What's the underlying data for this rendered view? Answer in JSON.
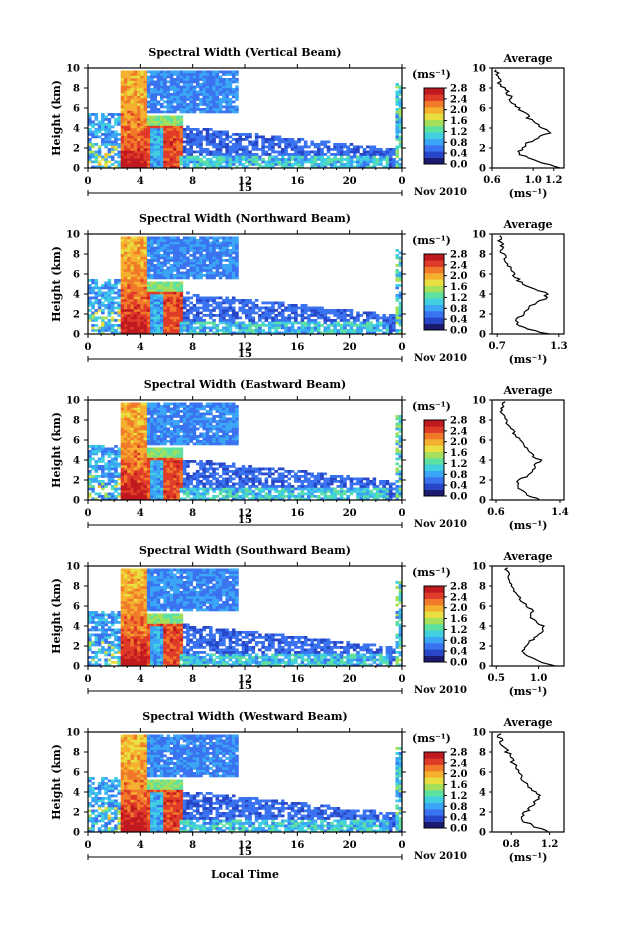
{
  "figure": {
    "x_axis_label": "Local Time",
    "y_axis_label": "Height (km)",
    "date_label": "Nov 2010",
    "colorbar_unit": "(ms⁻¹)",
    "profile_title": "Average",
    "profile_unit": "(ms⁻¹)"
  },
  "colormap": [
    "#1a1a6e",
    "#2747c8",
    "#3a73f0",
    "#3aa6f5",
    "#40d0e0",
    "#5de0a0",
    "#a6e05a",
    "#e8e040",
    "#f5b030",
    "#f07a2a",
    "#e03a28",
    "#c01a20"
  ],
  "chart_data": [
    {
      "type": "heatmap",
      "title": "Spectral Width (Vertical Beam)",
      "x_ticks": [
        "0",
        "4",
        "8",
        "12",
        "16",
        "20",
        "0"
      ],
      "x_day_label": "15",
      "y_ticks": [
        "0",
        "2",
        "4",
        "6",
        "8",
        "10"
      ],
      "ylim": [
        0,
        10
      ],
      "colorbar_ticks": [
        "2.8",
        "2.4",
        "2.0",
        "1.6",
        "1.2",
        "0.8",
        "0.4",
        "0.0"
      ],
      "colorbar_range": [
        0.0,
        2.8
      ],
      "profile": {
        "title": "Average",
        "x_ticks": [
          "0.6",
          "1.0",
          "1.2"
        ],
        "x_tick_values": [
          0.6,
          1.0,
          1.2
        ],
        "xlim": [
          0.6,
          1.3
        ],
        "height": [
          0.0,
          0.5,
          1.0,
          1.5,
          2.0,
          2.5,
          3.0,
          3.5,
          4.0,
          4.5,
          5.0,
          5.5,
          6.0,
          6.5,
          7.0,
          7.5,
          8.0,
          8.5,
          9.0,
          9.5
        ],
        "value": [
          1.25,
          1.1,
          0.95,
          0.85,
          0.9,
          0.95,
          1.05,
          1.15,
          1.1,
          1.0,
          0.95,
          0.95,
          0.85,
          0.8,
          0.78,
          0.76,
          0.72,
          0.68,
          0.66,
          0.64
        ]
      }
    },
    {
      "type": "heatmap",
      "title": "Spectral Width (Northward Beam)",
      "x_ticks": [
        "0",
        "4",
        "8",
        "12",
        "16",
        "20",
        "0"
      ],
      "x_day_label": "15",
      "y_ticks": [
        "0",
        "2",
        "4",
        "6",
        "8",
        "10"
      ],
      "ylim": [
        0,
        10
      ],
      "colorbar_ticks": [
        "2.8",
        "2.4",
        "2.0",
        "1.6",
        "1.2",
        "0.8",
        "0.4",
        "0.0"
      ],
      "colorbar_range": [
        0.0,
        2.8
      ],
      "profile": {
        "title": "Average",
        "x_ticks": [
          "0.7",
          "1.3"
        ],
        "x_tick_values": [
          0.7,
          1.3
        ],
        "xlim": [
          0.65,
          1.35
        ],
        "height": [
          0.0,
          0.5,
          1.0,
          1.5,
          2.0,
          2.5,
          3.0,
          3.5,
          4.0,
          4.5,
          5.0,
          5.5,
          6.0,
          6.5,
          7.0,
          7.5,
          8.0,
          8.5,
          9.0,
          9.5
        ],
        "value": [
          1.2,
          1.0,
          0.9,
          0.9,
          0.95,
          1.0,
          1.05,
          1.15,
          1.2,
          1.05,
          0.95,
          0.9,
          0.85,
          0.82,
          0.8,
          0.78,
          0.76,
          0.74,
          0.75,
          0.72
        ]
      }
    },
    {
      "type": "heatmap",
      "title": "Spectral Width (Eastward Beam)",
      "x_ticks": [
        "0",
        "4",
        "8",
        "12",
        "16",
        "20",
        "0"
      ],
      "x_day_label": "15",
      "y_ticks": [
        "0",
        "2",
        "4",
        "6",
        "8",
        "10"
      ],
      "ylim": [
        0,
        10
      ],
      "colorbar_ticks": [
        "2.8",
        "2.4",
        "2.0",
        "1.6",
        "1.2",
        "0.8",
        "0.4",
        "0.0"
      ],
      "colorbar_range": [
        0.0,
        2.8
      ],
      "profile": {
        "title": "Average",
        "x_ticks": [
          "0.6",
          "1.4"
        ],
        "x_tick_values": [
          0.6,
          1.4
        ],
        "xlim": [
          0.55,
          1.45
        ],
        "height": [
          0.0,
          0.5,
          1.0,
          1.5,
          2.0,
          2.5,
          3.0,
          3.5,
          4.0,
          4.5,
          5.0,
          5.5,
          6.0,
          6.5,
          7.0,
          7.5,
          8.0,
          8.5,
          9.0,
          9.5
        ],
        "value": [
          1.15,
          1.0,
          0.9,
          0.85,
          0.9,
          1.0,
          1.05,
          1.1,
          1.15,
          1.05,
          1.0,
          0.95,
          0.9,
          0.85,
          0.8,
          0.76,
          0.72,
          0.68,
          0.66,
          0.7
        ]
      }
    },
    {
      "type": "heatmap",
      "title": "Spectral Width (Southward Beam)",
      "x_ticks": [
        "0",
        "4",
        "8",
        "12",
        "16",
        "20",
        "0"
      ],
      "x_day_label": "15",
      "y_ticks": [
        "0",
        "2",
        "4",
        "6",
        "8",
        "10"
      ],
      "ylim": [
        0,
        10
      ],
      "colorbar_ticks": [
        "2.8",
        "2.4",
        "2.0",
        "1.6",
        "1.2",
        "0.8",
        "0.4",
        "0.0"
      ],
      "colorbar_range": [
        0.0,
        2.8
      ],
      "profile": {
        "title": "Average",
        "x_ticks": [
          "0.5",
          "1.0"
        ],
        "x_tick_values": [
          0.5,
          1.0
        ],
        "xlim": [
          0.45,
          1.3
        ],
        "height": [
          0.0,
          0.5,
          1.0,
          1.5,
          2.0,
          2.5,
          3.0,
          3.5,
          4.0,
          4.5,
          5.0,
          5.5,
          6.0,
          6.5,
          7.0,
          7.5,
          8.0,
          8.5,
          9.0,
          9.5
        ],
        "value": [
          1.2,
          1.0,
          0.85,
          0.8,
          0.85,
          0.9,
          1.0,
          1.05,
          1.05,
          0.95,
          0.9,
          0.95,
          0.85,
          0.8,
          0.75,
          0.72,
          0.7,
          0.66,
          0.64,
          0.62
        ]
      }
    },
    {
      "type": "heatmap",
      "title": "Spectral Width (Westward Beam)",
      "x_ticks": [
        "0",
        "4",
        "8",
        "12",
        "16",
        "20",
        "0"
      ],
      "x_day_label": "15",
      "y_ticks": [
        "0",
        "2",
        "4",
        "6",
        "8",
        "10"
      ],
      "ylim": [
        0,
        10
      ],
      "colorbar_ticks": [
        "2.8",
        "2.4",
        "2.0",
        "1.6",
        "1.2",
        "0.8",
        "0.4",
        "0.0"
      ],
      "colorbar_range": [
        0.0,
        2.8
      ],
      "profile": {
        "title": "Average",
        "x_ticks": [
          "0.8",
          "1.2"
        ],
        "x_tick_values": [
          0.8,
          1.2
        ],
        "xlim": [
          0.6,
          1.35
        ],
        "height": [
          0.0,
          0.5,
          1.0,
          1.5,
          2.0,
          2.5,
          3.0,
          3.5,
          4.0,
          4.5,
          5.0,
          5.5,
          6.0,
          6.5,
          7.0,
          7.5,
          8.0,
          8.5,
          9.0,
          9.5
        ],
        "value": [
          1.2,
          1.05,
          0.95,
          0.9,
          0.95,
          1.0,
          1.05,
          1.1,
          1.05,
          1.0,
          0.95,
          0.9,
          0.88,
          0.85,
          0.82,
          0.8,
          0.76,
          0.72,
          0.7,
          0.68
        ]
      }
    }
  ]
}
